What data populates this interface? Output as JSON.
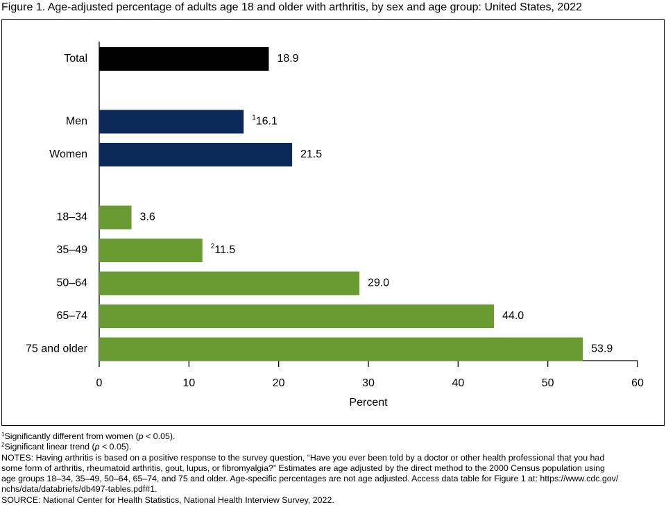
{
  "chart_data": {
    "type": "hbar",
    "title": "Figure 1. Age-adjusted percentage of adults age 18 and older with arthritis, by sex and age group: United States, 2022",
    "categories": [
      "Total",
      "Men",
      "Women",
      "18–34",
      "35–49",
      "50–64",
      "65–74",
      "75 and older"
    ],
    "values": [
      18.9,
      16.1,
      21.5,
      3.6,
      11.5,
      29.0,
      44.0,
      53.9
    ],
    "value_labels": [
      "18.9",
      "16.1",
      "21.5",
      "3.6",
      "11.5",
      "29.0",
      "44.0",
      "53.9"
    ],
    "value_label_superscripts": [
      null,
      "1",
      null,
      null,
      "2",
      null,
      null,
      null
    ],
    "colors": [
      "#000000",
      "#0b2a5b",
      "#0b2a5b",
      "#6a9a32",
      "#6a9a32",
      "#6a9a32",
      "#6a9a32",
      "#6a9a32"
    ],
    "xlabel": "Percent",
    "xlim": [
      0,
      60
    ],
    "xticks": [
      0,
      10,
      20,
      30,
      40,
      50,
      60
    ],
    "grid": false
  },
  "footnotes": [
    {
      "mark": "1",
      "parts": [
        "Significantly different from women (",
        "p",
        " < 0.05)."
      ]
    },
    {
      "mark": "2",
      "parts": [
        "Significant linear trend (",
        "p",
        " < 0.05)."
      ]
    }
  ],
  "notes": [
    "NOTES: Having arthritis is based on a positive response to the survey question, “Have you ever been told by a doctor or other health professional that you had",
    "some form of arthritis, rheumatoid arthritis, gout, lupus, or fibromyalgia?” Estimates are age adjusted by the direct method to the 2000 Census population using",
    "age groups 18–34, 35–49, 50–64, 65–74, and 75 and older. Age-specific percentages are not age adjusted. Access data table for Figure 1 at: https://www.cdc.gov/",
    "nchs/data/databriefs/db497-tables.pdf#1."
  ],
  "source": "SOURCE: National Center for Health Statistics, National Health Interview Survey, 2022."
}
